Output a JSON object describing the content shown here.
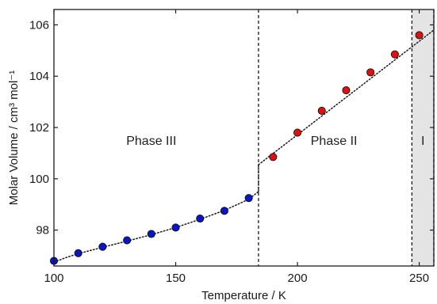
{
  "chart_data": {
    "type": "scatter",
    "xlabel": "Temperature / K",
    "ylabel": "Molar Volume / cm³ mol⁻¹",
    "xlim": [
      100,
      256
    ],
    "ylim": [
      96.6,
      106.6
    ],
    "xticks": [
      100,
      150,
      200,
      250
    ],
    "yticks": [
      98,
      100,
      102,
      104,
      106
    ],
    "grid": false,
    "series": [
      {
        "color": "#0a14c8",
        "x": [
          100,
          110,
          120,
          130,
          140,
          150,
          160,
          170,
          180
        ],
        "y": [
          96.8,
          97.1,
          97.35,
          97.6,
          97.85,
          98.1,
          98.45,
          98.75,
          99.25
        ]
      },
      {
        "color": "#e01010",
        "x": [
          190,
          200,
          210,
          220,
          230,
          240,
          250
        ],
        "y": [
          100.85,
          101.8,
          102.65,
          103.45,
          104.15,
          104.85,
          105.6
        ]
      }
    ],
    "fit_lines": [
      {
        "style": "dotted",
        "x": [
          100,
          105,
          110,
          120,
          130,
          140,
          150,
          160,
          170,
          180,
          184
        ],
        "y": [
          96.75,
          96.93,
          97.08,
          97.33,
          97.57,
          97.82,
          98.1,
          98.42,
          98.77,
          99.2,
          99.5
        ]
      },
      {
        "style": "dotted",
        "x": [
          184,
          184
        ],
        "y": [
          99.5,
          100.55
        ]
      },
      {
        "style": "dotted",
        "x": [
          184,
          256
        ],
        "y": [
          100.55,
          105.8
        ]
      }
    ],
    "phase_boundaries": [
      184,
      247,
      256
    ],
    "shaded_region": {
      "x": [
        247,
        256
      ],
      "color": "#e4e4e4"
    },
    "annotations": [
      {
        "text": "Phase III",
        "x": 140,
        "y": 101.5
      },
      {
        "text": "Phase II",
        "x": 215,
        "y": 101.5
      },
      {
        "text": "I",
        "x": 251.5,
        "y": 101.5
      }
    ]
  }
}
